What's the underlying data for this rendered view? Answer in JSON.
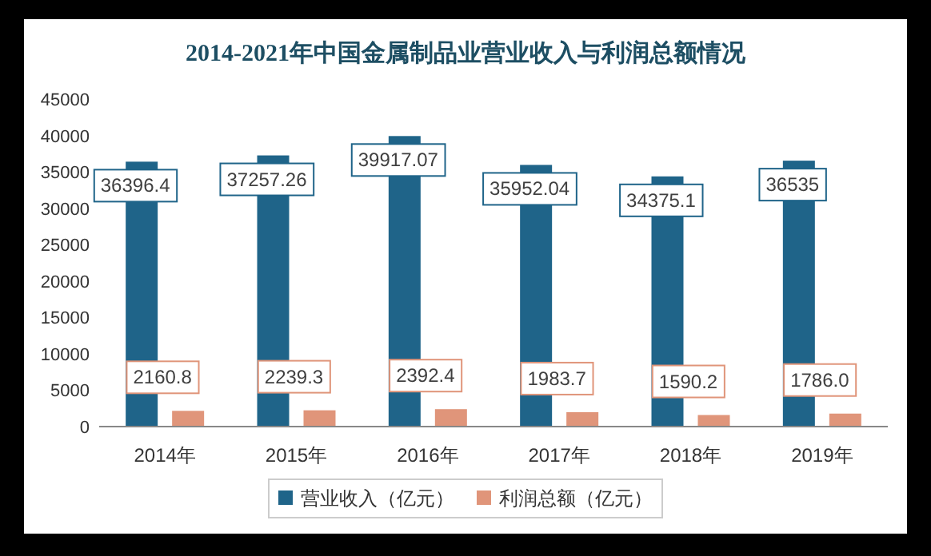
{
  "chart_data": {
    "type": "bar",
    "title": "2014-2021年中国金属制品业营业收入与利润总额情况",
    "categories": [
      "2014年",
      "2015年",
      "2016年",
      "2017年",
      "2018年",
      "2019年"
    ],
    "series": [
      {
        "name": "营业收入（亿元）",
        "color": "#1f6489",
        "values": [
          36396.4,
          37257.26,
          39917.07,
          35952.04,
          34375.1,
          36535
        ],
        "value_labels": [
          "36396.4",
          "37257.26",
          "39917.07",
          "35952.04",
          "34375.1",
          "36535"
        ]
      },
      {
        "name": "利润总额（亿元）",
        "color": "#e0957a",
        "values": [
          2160.8,
          2239.3,
          2392.4,
          1983.7,
          1590.2,
          1786.0
        ],
        "value_labels": [
          "2160.8",
          "2239.3",
          "2392.4",
          "1983.7",
          "1590.2",
          "1786.0"
        ]
      }
    ],
    "ylim": [
      0,
      45000
    ],
    "yticks": [
      0,
      5000,
      10000,
      15000,
      20000,
      25000,
      30000,
      35000,
      40000,
      45000
    ],
    "legend": "bottom"
  }
}
